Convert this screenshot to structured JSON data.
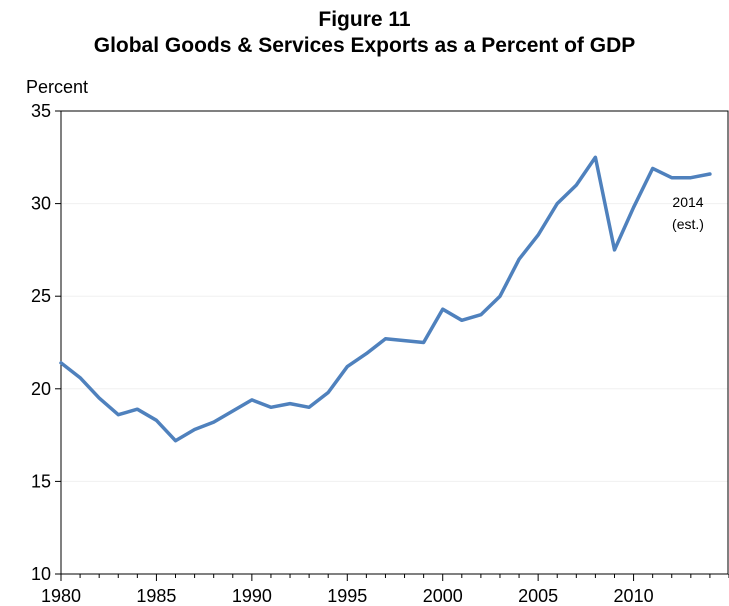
{
  "figure_label": "Figure 11",
  "chart_data": {
    "type": "line",
    "title": "Global Goods & Services Exports as a Percent of GDP",
    "xlabel": "",
    "ylabel": "Percent",
    "xlim": [
      1980,
      2015
    ],
    "ylim": [
      10,
      35
    ],
    "x_ticks": [
      1980,
      1985,
      1990,
      1995,
      2000,
      2005,
      2010
    ],
    "y_ticks": [
      10,
      15,
      20,
      25,
      30,
      35
    ],
    "grid": "horizontal",
    "legend": "none",
    "line_color": "#4F81BD",
    "series": [
      {
        "x": [
          1980,
          1981,
          1982,
          1983,
          1984,
          1985,
          1986,
          1987,
          1988,
          1989,
          1990,
          1991,
          1992,
          1993,
          1994,
          1995,
          1996,
          1997,
          1998,
          1999,
          2000,
          2001,
          2002,
          2003,
          2004,
          2005,
          2006,
          2007,
          2008,
          2009,
          2010,
          2011,
          2012,
          2013,
          2014
        ],
        "values": [
          21.4,
          20.6,
          19.5,
          18.6,
          18.9,
          18.3,
          17.2,
          17.8,
          18.2,
          18.8,
          19.4,
          19.0,
          19.2,
          19.0,
          19.8,
          21.2,
          21.9,
          22.7,
          22.6,
          22.5,
          24.3,
          23.7,
          24.0,
          25.0,
          27.0,
          28.3,
          30.0,
          31.0,
          32.5,
          27.5,
          29.8,
          31.9,
          31.4,
          31.4,
          31.6
        ]
      }
    ],
    "annotations": [
      {
        "line1": "2014",
        "line2": "(est.)"
      }
    ]
  }
}
